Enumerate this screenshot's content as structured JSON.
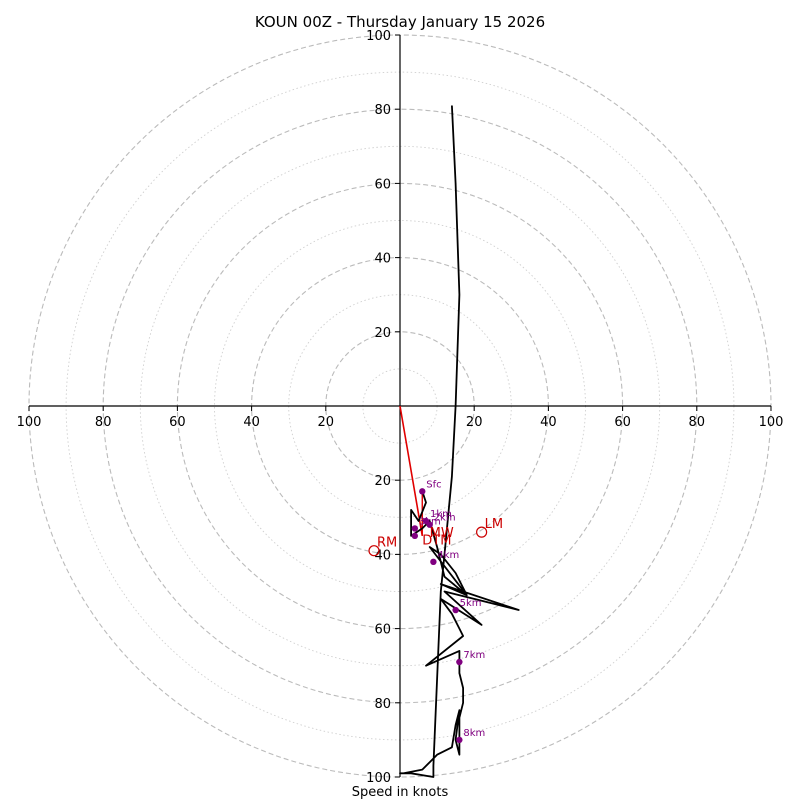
{
  "chart_data": {
    "type": "hodograph",
    "title": "KOUN 00Z - Thursday January 15 2026",
    "xlabel": "Speed in knots",
    "range_knots": 100,
    "ring_interval_dashed": 20,
    "ring_interval_dotted": 10,
    "axis_tick_labels": {
      "x_left": [
        "100",
        "80",
        "60",
        "40",
        "20"
      ],
      "x_right": [
        "20",
        "40",
        "60",
        "80",
        "100"
      ],
      "y_top": [
        "100",
        "80",
        "60",
        "40",
        "20"
      ],
      "y_bottom": [
        "20",
        "40",
        "60",
        "80",
        "100"
      ]
    },
    "colors": {
      "trace": "#000000",
      "storm_vector": "#e00000",
      "height_marker": "#800080",
      "motion_label": "#cc0000",
      "rings": "#bbbbbb",
      "axes": "#000000"
    },
    "trace_uv": [
      [
        6,
        -23
      ],
      [
        7,
        -26
      ],
      [
        5,
        -31
      ],
      [
        3,
        -28
      ],
      [
        3,
        -35
      ],
      [
        6,
        -33
      ],
      [
        8,
        -31
      ],
      [
        10,
        -38
      ],
      [
        11,
        -42
      ],
      [
        12,
        -46
      ],
      [
        18,
        -51
      ],
      [
        8,
        -38
      ],
      [
        11,
        -40
      ],
      [
        15,
        -45
      ],
      [
        18,
        -51
      ],
      [
        11,
        -48
      ],
      [
        32,
        -55
      ],
      [
        12,
        -50
      ],
      [
        22,
        -59
      ],
      [
        11,
        -52
      ],
      [
        14,
        -56
      ],
      [
        16,
        -60
      ],
      [
        17,
        -62
      ],
      [
        7,
        -70
      ],
      [
        16,
        -66
      ],
      [
        16,
        -72
      ],
      [
        17,
        -76
      ],
      [
        17,
        -80
      ],
      [
        16,
        -84
      ],
      [
        16,
        -90
      ],
      [
        16,
        -94
      ],
      [
        15,
        -90
      ],
      [
        16,
        -82
      ],
      [
        15,
        -86
      ],
      [
        14,
        -92
      ],
      [
        10,
        -94
      ],
      [
        8,
        -96
      ],
      [
        6,
        -98
      ],
      [
        1,
        -99
      ],
      [
        0,
        -99
      ],
      [
        3,
        -99
      ],
      [
        9,
        -100
      ],
      [
        9,
        -97
      ],
      [
        11,
        -50
      ],
      [
        12,
        -40
      ],
      [
        14,
        -19
      ],
      [
        15,
        0
      ],
      [
        16,
        30
      ],
      [
        15,
        60
      ],
      [
        14,
        81
      ]
    ],
    "height_markers": [
      {
        "label": "Sfc",
        "u": 6,
        "v": -23
      },
      {
        "label": "1km",
        "u": 7,
        "v": -31
      },
      {
        "label": "2km",
        "u": 8,
        "v": -32
      },
      {
        "label": "3km",
        "u": 4,
        "v": -33
      },
      {
        "label": "",
        "u": 4,
        "v": -35
      },
      {
        "label": "4km",
        "u": 9,
        "v": -42
      },
      {
        "label": "5km",
        "u": 15,
        "v": -55
      },
      {
        "label": "7km",
        "u": 16,
        "v": -69
      },
      {
        "label": "8km",
        "u": 16,
        "v": -90
      }
    ],
    "storm_motion": [
      {
        "label": "RM",
        "u": -7,
        "v": -39
      },
      {
        "label": "LM",
        "u": 22,
        "v": -34
      },
      {
        "label": "MW",
        "u": 8,
        "v": -34
      },
      {
        "label": "DTM",
        "u": 6,
        "v": -36
      }
    ],
    "storm_vector_tip": {
      "u": 6,
      "v": -35
    }
  }
}
